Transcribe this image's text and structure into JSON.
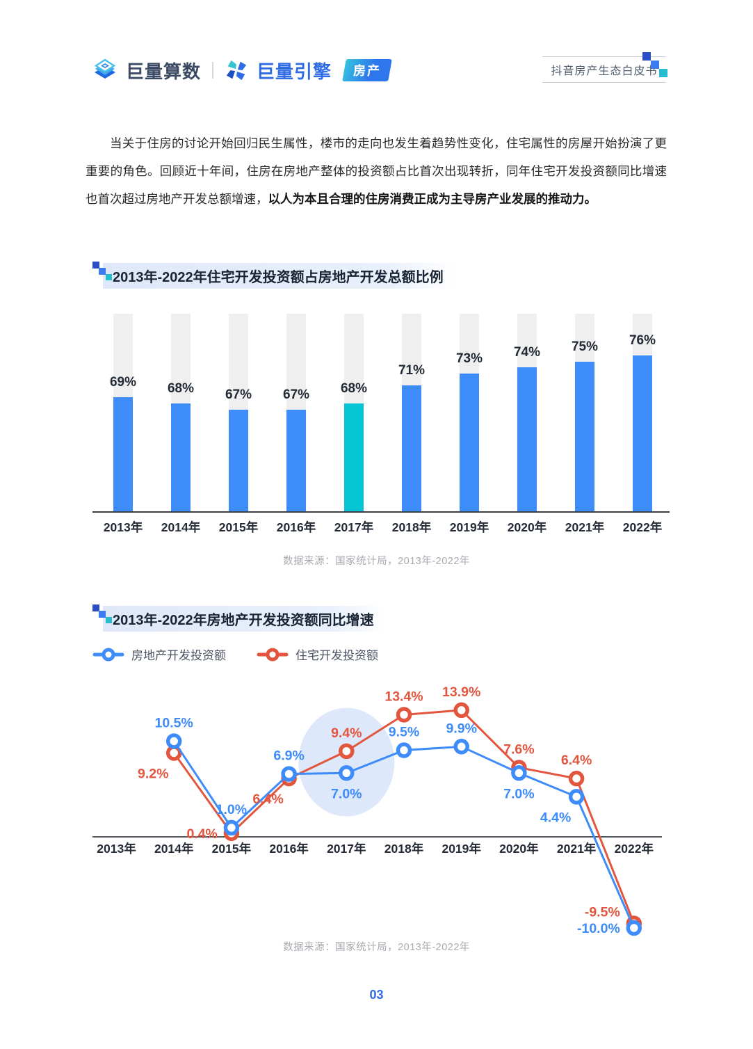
{
  "header": {
    "logo_datas": "巨量算数",
    "logo_engine": "巨量引擎",
    "badge": "房产",
    "right_title": "抖音房产生态白皮书"
  },
  "paragraph": {
    "normal": "当关于住房的讨论开始回归民生属性，楼市的走向也发生着趋势性变化，住宅属性的房屋开始扮演了更重要的角色。回顾近十年间，住房在房地产整体的投资额占比首次出现转折，同年住宅开发投资额同比增速也首次超过房地产开发总额增速，",
    "bold": "以人为本且合理的住房消费正成为主导房产业发展的推动力。"
  },
  "page_number": "03",
  "colors": {
    "blue": "#3E8BFA",
    "teal": "#06C5D5",
    "red": "#E2563E",
    "track_gray": "#EFEFF0",
    "highlight_ellipse": "#D9E5FA"
  },
  "chart_data": [
    {
      "type": "bar",
      "title": "2013年-2022年住宅开发投资额占房地产开发总额比例",
      "categories": [
        "2013年",
        "2014年",
        "2015年",
        "2016年",
        "2017年",
        "2018年",
        "2019年",
        "2020年",
        "2021年",
        "2022年"
      ],
      "values": [
        69,
        68,
        67,
        67,
        68,
        71,
        73,
        74,
        75,
        76
      ],
      "labels": [
        "69%",
        "68%",
        "67%",
        "67%",
        "68%",
        "71%",
        "73%",
        "74%",
        "75%",
        "76%"
      ],
      "unit": "%",
      "highlight_index": 4,
      "bar_color": "#3E8BFA",
      "highlight_color": "#06C5D5",
      "track_color": "#EFEFF0",
      "ylim": [
        50,
        83
      ],
      "grid": false,
      "legend": "none",
      "source": "数据来源：国家统计局，2013年-2022年"
    },
    {
      "type": "line",
      "title": "2013年-2022年房地产开发投资额同比增速",
      "categories": [
        "2013年",
        "2014年",
        "2015年",
        "2016年",
        "2017年",
        "2018年",
        "2019年",
        "2020年",
        "2021年",
        "2022年"
      ],
      "series": [
        {
          "name": "房地产开发投资额",
          "color": "#3E8BFA",
          "values": [
            null,
            10.5,
            1.0,
            6.9,
            7.0,
            9.5,
            9.9,
            7.0,
            4.4,
            -10.0
          ],
          "labels": [
            null,
            "10.5%",
            "1.0%",
            "6.9%",
            "7.0%",
            "9.5%",
            "9.9%",
            "7.0%",
            "4.4%",
            "-10.0%"
          ],
          "label_pos": [
            null,
            "above",
            "above",
            "above",
            "below",
            "above",
            "above",
            "below",
            "below-left",
            "left"
          ]
        },
        {
          "name": "住宅开发投资额",
          "color": "#E2563E",
          "values": [
            null,
            9.2,
            0.4,
            6.4,
            9.4,
            13.4,
            13.9,
            7.6,
            6.4,
            -9.5
          ],
          "labels": [
            null,
            "9.2%",
            "0.4%",
            "6.4%",
            "9.4%",
            "13.4%",
            "13.9%",
            "7.6%",
            "6.4%",
            "-9.5%"
          ],
          "label_pos": [
            null,
            "below-left",
            "left",
            "below-left",
            "above",
            "above",
            "above",
            "above",
            "above",
            "left-above"
          ]
        }
      ],
      "highlight": {
        "category": "2017年",
        "color": "#D9E5FA"
      },
      "axis_zero_line": true,
      "grid": false,
      "legend_position": "top-left",
      "source": "数据来源：国家统计局，2013年-2022年"
    }
  ]
}
